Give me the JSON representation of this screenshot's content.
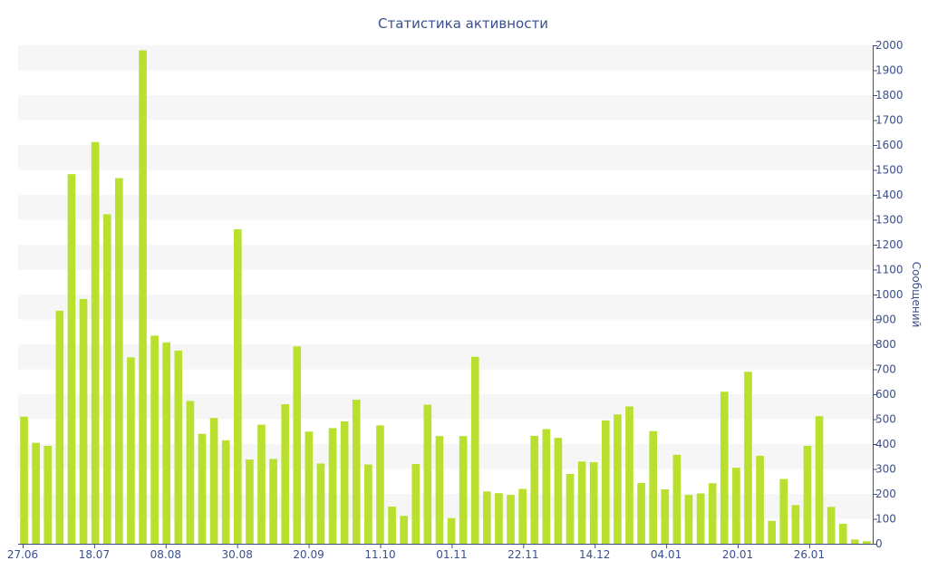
{
  "chart_data": {
    "type": "bar",
    "title": "Статистика активности",
    "xlabel": "",
    "ylabel": "Сообщений",
    "ylim": [
      0,
      2000
    ],
    "y_ticks": [
      0,
      100,
      200,
      300,
      400,
      500,
      600,
      700,
      800,
      900,
      1000,
      1100,
      1200,
      1300,
      1400,
      1500,
      1600,
      1700,
      1800,
      1900,
      2000
    ],
    "y_axis_side": "right",
    "grid": "alternating horizontal bands",
    "legend": "none",
    "x_tick_labels": [
      "27.06",
      "18.07",
      "08.08",
      "30.08",
      "20.09",
      "11.10",
      "01.11",
      "22.11",
      "14.12",
      "04.01",
      "20.01",
      "26.01"
    ],
    "x_tick_label_positions": [
      0,
      3,
      6,
      9,
      12,
      15,
      18,
      21,
      24,
      27,
      30,
      33
    ],
    "values": [
      510,
      405,
      393,
      935,
      1483,
      982,
      1612,
      1322,
      1467,
      748,
      1980,
      835,
      808,
      775,
      573,
      441,
      505,
      415,
      1262,
      338,
      478,
      340,
      560,
      792,
      450,
      322,
      464,
      491,
      578,
      318,
      475,
      149,
      112,
      320,
      558,
      432,
      103,
      432,
      750,
      210,
      203,
      196,
      220,
      433,
      460,
      425,
      280,
      330,
      327,
      495,
      519,
      551,
      244,
      452,
      218,
      357,
      196,
      202,
      243,
      610,
      305,
      690,
      353,
      92,
      260,
      155,
      393,
      512,
      148,
      80,
      17,
      10
    ],
    "colors": {
      "bar": "#b9e02e",
      "band": "#f6f6f6",
      "text": "#3a4f8e",
      "axis": "#3a4f8e"
    }
  }
}
